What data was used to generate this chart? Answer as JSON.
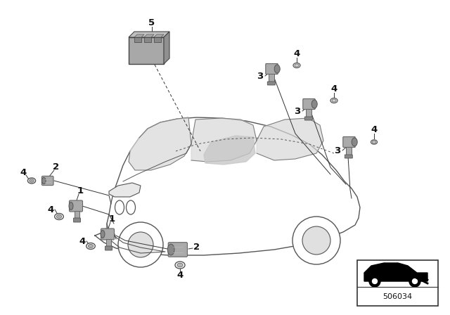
{
  "bg_color": "#ffffff",
  "part_number": "506034",
  "fig_width": 6.4,
  "fig_height": 4.48,
  "dpi": 100,
  "line_color": "#555555",
  "sensor_color": "#aaaaaa",
  "sensor_dark": "#888888",
  "label_color": "#111111"
}
